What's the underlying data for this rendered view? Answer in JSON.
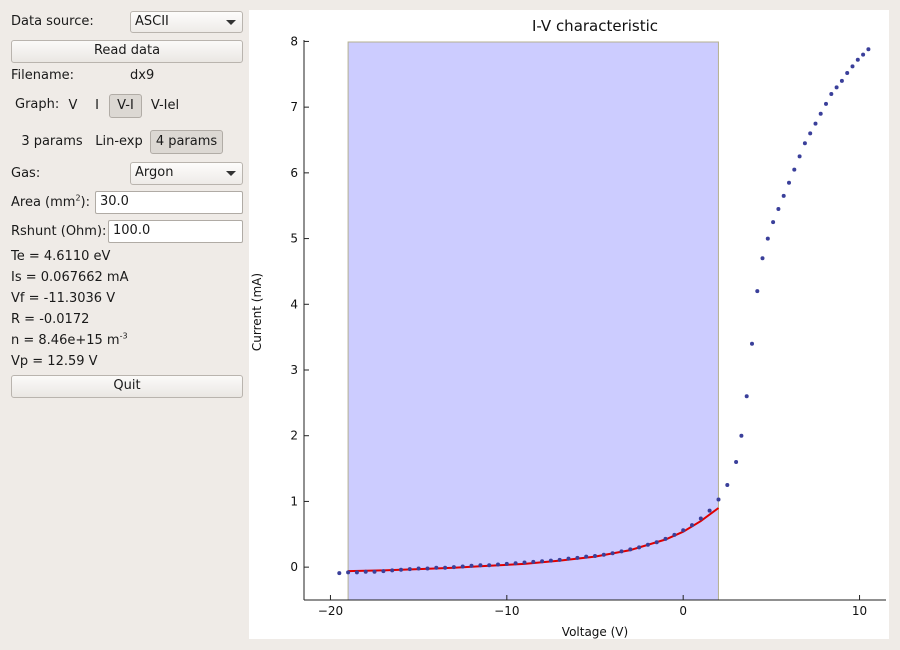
{
  "panel": {
    "data_source_label": "Data source:",
    "data_source_value": "ASCII",
    "read_data_label": "Read data",
    "filename_label": "Filename:",
    "filename_value": "dx9",
    "graph_label": "Graph:",
    "graph_options": [
      "V",
      "I",
      "V-I",
      "V-Iel"
    ],
    "graph_selected": "V-I",
    "fit_options": [
      "3 params",
      "Lin-exp",
      "4 params"
    ],
    "fit_selected": "4 params",
    "gas_label": "Gas:",
    "gas_value": "Argon",
    "area_label": "Area (mm",
    "area_label_sup": "2",
    "area_label_tail": "):",
    "area_value": "30.0",
    "rshunt_label": "Rshunt (Ohm):",
    "rshunt_value": "100.0",
    "te": "Te = 4.6110 eV",
    "is": "Is = 0.067662 mA",
    "vf": "Vf = -11.3036 V",
    "r": "R = -0.0172",
    "n": "n = 8.46e+15 m",
    "n_sup": "-3",
    "vp": "Vp = 12.59 V",
    "quit_label": "Quit"
  },
  "chart_data": {
    "type": "scatter",
    "title": "I-V characteristic",
    "xlabel": "Voltage (V)",
    "ylabel": "Current (mA)",
    "xlim": [
      -21.5,
      11.5
    ],
    "ylim": [
      -0.5,
      8.25
    ],
    "xticks": [
      -20,
      -10,
      0,
      10
    ],
    "yticks": [
      0,
      1,
      2,
      3,
      4,
      5,
      6,
      7,
      8
    ],
    "xticklabels": [
      "−20",
      "−10",
      "0",
      "10"
    ],
    "yticklabels": [
      "0",
      "1",
      "2",
      "3",
      "4",
      "5",
      "6",
      "7",
      "8"
    ],
    "grid": false,
    "legend": "none",
    "highlight_region": {
      "x_start": -19.0,
      "x_end": 2.0,
      "color": "#ccccff"
    },
    "marker_color": "#3a3f9a",
    "fit_color": "#e00000",
    "measured": {
      "x": [
        -19.5,
        -19.0,
        -18.5,
        -18.0,
        -17.5,
        -17.0,
        -16.5,
        -16.0,
        -15.5,
        -15.0,
        -14.5,
        -14.0,
        -13.5,
        -13.0,
        -12.5,
        -12.0,
        -11.5,
        -11.0,
        -10.5,
        -10.0,
        -9.5,
        -9.0,
        -8.5,
        -8.0,
        -7.5,
        -7.0,
        -6.5,
        -6.0,
        -5.5,
        -5.0,
        -4.5,
        -4.0,
        -3.5,
        -3.0,
        -2.5,
        -2.0,
        -1.5,
        -1.0,
        -0.5,
        0.0,
        0.5,
        1.0,
        1.5,
        2.0,
        2.5,
        3.0,
        3.3,
        3.6,
        3.9,
        4.2,
        4.5,
        4.8,
        5.1,
        5.4,
        5.7,
        6.0,
        6.3,
        6.6,
        6.9,
        7.2,
        7.5,
        7.8,
        8.1,
        8.4,
        8.7,
        9.0,
        9.3,
        9.6,
        9.9,
        10.2,
        10.5
      ],
      "y": [
        -0.09,
        -0.08,
        -0.08,
        -0.07,
        -0.07,
        -0.06,
        -0.05,
        -0.04,
        -0.03,
        -0.02,
        -0.02,
        -0.01,
        -0.01,
        0.0,
        0.01,
        0.02,
        0.03,
        0.03,
        0.04,
        0.05,
        0.06,
        0.07,
        0.08,
        0.09,
        0.1,
        0.11,
        0.13,
        0.14,
        0.16,
        0.17,
        0.19,
        0.21,
        0.24,
        0.27,
        0.3,
        0.34,
        0.38,
        0.43,
        0.49,
        0.56,
        0.64,
        0.74,
        0.86,
        1.03,
        1.25,
        1.6,
        2.0,
        2.6,
        3.4,
        4.2,
        4.7,
        5.0,
        5.25,
        5.45,
        5.65,
        5.85,
        6.05,
        6.25,
        6.45,
        6.6,
        6.75,
        6.9,
        7.05,
        7.2,
        7.3,
        7.4,
        7.52,
        7.62,
        7.72,
        7.8,
        7.88
      ]
    },
    "fit": {
      "x": [
        -19.0,
        -17.0,
        -15.0,
        -13.0,
        -11.0,
        -9.0,
        -7.0,
        -5.0,
        -3.0,
        -1.0,
        0.0,
        1.0,
        2.0
      ],
      "y": [
        -0.06,
        -0.05,
        -0.03,
        -0.01,
        0.02,
        0.05,
        0.1,
        0.16,
        0.26,
        0.42,
        0.54,
        0.7,
        0.9
      ]
    }
  }
}
